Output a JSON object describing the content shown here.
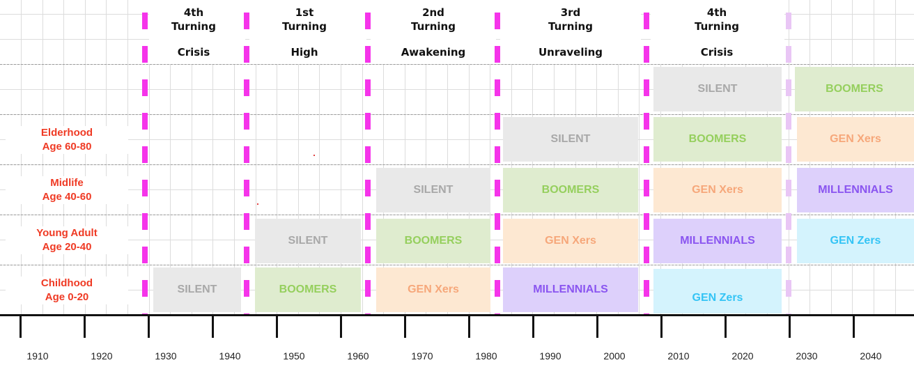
{
  "turnings": [
    {
      "number": "4th",
      "word": "Turning",
      "kind": "Crisis"
    },
    {
      "number": "1st",
      "word": "Turning",
      "kind": "High"
    },
    {
      "number": "2nd",
      "word": "Turning",
      "kind": "Awakening"
    },
    {
      "number": "3rd",
      "word": "Turning",
      "kind": "Unraveling"
    },
    {
      "number": "4th",
      "word": "Turning",
      "kind": "Crisis"
    }
  ],
  "life_stages": [
    {
      "name": "Elderhood",
      "ages": "Age 60-80"
    },
    {
      "name": "Midlife",
      "ages": "Age 40-60"
    },
    {
      "name": "Young Adult",
      "ages": "Age 20-40"
    },
    {
      "name": "Childhood",
      "ages": "Age 0-20"
    }
  ],
  "generations": {
    "silent": "SILENT",
    "boomers": "BOOMERS",
    "genx": "GEN Xers",
    "millennials": "MILLENNIALS",
    "genz": "GEN Zers"
  },
  "years": [
    "1910",
    "1920",
    "1930",
    "1940",
    "1950",
    "1960",
    "1970",
    "1980",
    "1990",
    "2000",
    "2010",
    "2020",
    "2030",
    "2040"
  ],
  "colors": {
    "silent": "#a8a8a8",
    "boomers": "#95cf5d",
    "genx": "#f6a77a",
    "millennials": "#8a55f0",
    "genz": "#34c4f5",
    "turning_divider": "#f534ea",
    "stage_label": "#ef3a24"
  }
}
